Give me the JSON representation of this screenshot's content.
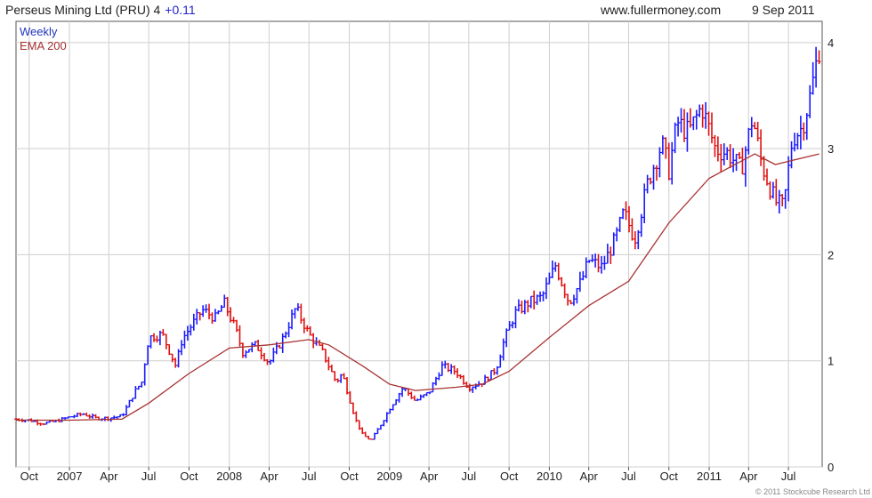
{
  "header": {
    "title": "Perseus Mining Ltd (PRU) 4",
    "change": "+0.11",
    "source": "www.fullermoney.com",
    "date": "9 Sep 2011"
  },
  "legend": {
    "weekly": "Weekly",
    "ema": "EMA 200"
  },
  "copyright": "© 2011 Stockcube Research Ltd",
  "colors": {
    "up": "#1a1aff",
    "down": "#e01010",
    "ema": "#a83232",
    "grid": "#cfcfcf"
  },
  "chart_data": {
    "type": "line",
    "ylim": [
      0,
      4.2
    ],
    "yticks": [
      0,
      1,
      2,
      3,
      4
    ],
    "grid": true,
    "legend_position": "top-left",
    "xticks": [
      {
        "label": "Oct",
        "date": "2006-10-01"
      },
      {
        "label": "2007",
        "date": "2007-01-01"
      },
      {
        "label": "Apr",
        "date": "2007-04-01"
      },
      {
        "label": "Jul",
        "date": "2007-07-01"
      },
      {
        "label": "Oct",
        "date": "2007-10-01"
      },
      {
        "label": "2008",
        "date": "2008-01-01"
      },
      {
        "label": "Apr",
        "date": "2008-04-01"
      },
      {
        "label": "Jul",
        "date": "2008-07-01"
      },
      {
        "label": "Oct",
        "date": "2008-10-01"
      },
      {
        "label": "2009",
        "date": "2009-01-01"
      },
      {
        "label": "Apr",
        "date": "2009-04-01"
      },
      {
        "label": "Jul",
        "date": "2009-07-01"
      },
      {
        "label": "Oct",
        "date": "2009-10-01"
      },
      {
        "label": "2010",
        "date": "2010-01-01"
      },
      {
        "label": "Apr",
        "date": "2010-04-01"
      },
      {
        "label": "Jul",
        "date": "2010-07-01"
      },
      {
        "label": "Oct",
        "date": "2010-10-01"
      },
      {
        "label": "2011",
        "date": "2011-01-01"
      },
      {
        "label": "Apr",
        "date": "2011-04-01"
      },
      {
        "label": "Jul",
        "date": "2011-07-01"
      }
    ],
    "series": [
      {
        "name": "Weekly",
        "values": [
          [
            "2006-09-01",
            0.45
          ],
          [
            "2006-10-01",
            0.44
          ],
          [
            "2006-11-01",
            0.41
          ],
          [
            "2006-12-01",
            0.43
          ],
          [
            "2007-01-01",
            0.47
          ],
          [
            "2007-02-01",
            0.5
          ],
          [
            "2007-03-01",
            0.46
          ],
          [
            "2007-04-01",
            0.46
          ],
          [
            "2007-05-01",
            0.48
          ],
          [
            "2007-06-01",
            0.72
          ],
          [
            "2007-06-15",
            0.8
          ],
          [
            "2007-07-01",
            1.22
          ],
          [
            "2007-08-01",
            1.25
          ],
          [
            "2007-09-01",
            0.95
          ],
          [
            "2007-09-15",
            1.2
          ],
          [
            "2007-10-01",
            1.3
          ],
          [
            "2007-11-01",
            1.48
          ],
          [
            "2007-12-01",
            1.4
          ],
          [
            "2007-12-20",
            1.55
          ],
          [
            "2008-01-15",
            1.3
          ],
          [
            "2008-02-01",
            1.08
          ],
          [
            "2008-02-15",
            1.12
          ],
          [
            "2008-03-01",
            1.15
          ],
          [
            "2008-04-01",
            0.98
          ],
          [
            "2008-05-01",
            1.2
          ],
          [
            "2008-06-01",
            1.5
          ],
          [
            "2008-07-01",
            1.25
          ],
          [
            "2008-08-01",
            1.08
          ],
          [
            "2008-09-01",
            0.8
          ],
          [
            "2008-09-15",
            0.88
          ],
          [
            "2008-10-15",
            0.45
          ],
          [
            "2008-11-01",
            0.3
          ],
          [
            "2008-11-20",
            0.25
          ],
          [
            "2008-12-15",
            0.42
          ],
          [
            "2009-01-01",
            0.55
          ],
          [
            "2009-02-01",
            0.75
          ],
          [
            "2009-03-01",
            0.62
          ],
          [
            "2009-04-01",
            0.7
          ],
          [
            "2009-05-01",
            0.95
          ],
          [
            "2009-06-01",
            0.9
          ],
          [
            "2009-07-01",
            0.75
          ],
          [
            "2009-08-01",
            0.8
          ],
          [
            "2009-09-01",
            0.92
          ],
          [
            "2009-09-20",
            1.2
          ],
          [
            "2009-10-15",
            1.45
          ],
          [
            "2009-11-15",
            1.55
          ],
          [
            "2009-12-15",
            1.6
          ],
          [
            "2010-01-15",
            1.9
          ],
          [
            "2010-02-15",
            1.55
          ],
          [
            "2010-03-15",
            1.75
          ],
          [
            "2010-04-01",
            1.95
          ],
          [
            "2010-05-01",
            1.88
          ],
          [
            "2010-06-01",
            2.15
          ],
          [
            "2010-06-20",
            2.4
          ],
          [
            "2010-07-15",
            2.15
          ],
          [
            "2010-08-15",
            2.7
          ],
          [
            "2010-09-15",
            3.05
          ],
          [
            "2010-10-01",
            2.8
          ],
          [
            "2010-10-20",
            3.25
          ],
          [
            "2010-11-15",
            3.15
          ],
          [
            "2010-12-15",
            3.4
          ],
          [
            "2011-01-15",
            3.0
          ],
          [
            "2011-02-15",
            2.95
          ],
          [
            "2011-03-15",
            2.8
          ],
          [
            "2011-04-10",
            3.3
          ],
          [
            "2011-05-01",
            2.85
          ],
          [
            "2011-06-01",
            2.5
          ],
          [
            "2011-06-20",
            2.45
          ],
          [
            "2011-07-10",
            3.1
          ],
          [
            "2011-08-01",
            3.2
          ],
          [
            "2011-08-20",
            3.5
          ],
          [
            "2011-09-09",
            3.95
          ]
        ]
      },
      {
        "name": "EMA 200",
        "values": [
          [
            "2006-09-01",
            0.44
          ],
          [
            "2007-01-01",
            0.44
          ],
          [
            "2007-05-01",
            0.45
          ],
          [
            "2007-07-01",
            0.6
          ],
          [
            "2007-10-01",
            0.88
          ],
          [
            "2008-01-01",
            1.12
          ],
          [
            "2008-04-01",
            1.15
          ],
          [
            "2008-07-01",
            1.2
          ],
          [
            "2008-08-15",
            1.15
          ],
          [
            "2008-11-01",
            0.95
          ],
          [
            "2009-01-01",
            0.78
          ],
          [
            "2009-03-01",
            0.72
          ],
          [
            "2009-06-01",
            0.75
          ],
          [
            "2009-08-01",
            0.78
          ],
          [
            "2009-10-01",
            0.9
          ],
          [
            "2010-01-01",
            1.22
          ],
          [
            "2010-04-01",
            1.52
          ],
          [
            "2010-07-01",
            1.75
          ],
          [
            "2010-10-01",
            2.3
          ],
          [
            "2011-01-01",
            2.72
          ],
          [
            "2011-04-15",
            2.95
          ],
          [
            "2011-06-01",
            2.85
          ],
          [
            "2011-09-09",
            2.95
          ]
        ]
      }
    ]
  }
}
